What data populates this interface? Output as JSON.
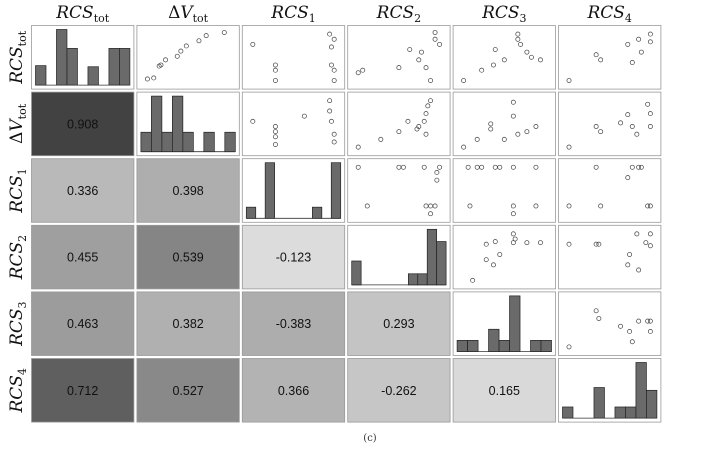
{
  "chart_data": {
    "type": "scatter-matrix",
    "variables": [
      {
        "id": "RCStot",
        "base": "RCS",
        "sub": "tot",
        "delta": false
      },
      {
        "id": "dVtot",
        "base": "V",
        "sub": "tot",
        "delta": true
      },
      {
        "id": "RCS1",
        "base": "RCS",
        "sub": "1",
        "delta": false
      },
      {
        "id": "RCS2",
        "base": "RCS",
        "sub": "2",
        "delta": false
      },
      {
        "id": "RCS3",
        "base": "RCS",
        "sub": "3",
        "delta": false
      },
      {
        "id": "RCS4",
        "base": "RCS",
        "sub": "4",
        "delta": false
      }
    ],
    "correlations": [
      {
        "row": 1,
        "col": 0,
        "value": "0.908",
        "shade": "#424242"
      },
      {
        "row": 2,
        "col": 0,
        "value": "0.336",
        "shade": "#b9b9b9"
      },
      {
        "row": 2,
        "col": 1,
        "value": "0.398",
        "shade": "#aeaeae"
      },
      {
        "row": 3,
        "col": 0,
        "value": "0.455",
        "shade": "#9f9f9f"
      },
      {
        "row": 3,
        "col": 1,
        "value": "0.539",
        "shade": "#858585"
      },
      {
        "row": 3,
        "col": 2,
        "value": "-0.123",
        "shade": "#dcdcdc"
      },
      {
        "row": 4,
        "col": 0,
        "value": "0.463",
        "shade": "#9c9c9c"
      },
      {
        "row": 4,
        "col": 1,
        "value": "0.382",
        "shade": "#b0b0b0"
      },
      {
        "row": 4,
        "col": 2,
        "value": "-0.383",
        "shade": "#adadad"
      },
      {
        "row": 4,
        "col": 3,
        "value": "0.293",
        "shade": "#c4c4c4"
      },
      {
        "row": 5,
        "col": 0,
        "value": "0.712",
        "shade": "#5f5f5f"
      },
      {
        "row": 5,
        "col": 1,
        "value": "0.527",
        "shade": "#898989"
      },
      {
        "row": 5,
        "col": 2,
        "value": "0.366",
        "shade": "#b3b3b3"
      },
      {
        "row": 5,
        "col": 3,
        "value": "-0.262",
        "shade": "#c6c6c6"
      },
      {
        "row": 5,
        "col": 4,
        "value": "0.165",
        "shade": "#d9d9d9"
      }
    ],
    "histograms": [
      [
        0.35,
        0,
        1.0,
        0.66,
        0,
        0.33,
        0,
        0.66,
        0.66
      ],
      [
        0.35,
        1.0,
        0.35,
        1.0,
        0.35,
        0,
        0.35,
        0,
        0.35
      ],
      [
        0.2,
        0,
        1.0,
        0,
        0,
        0,
        0,
        0.2,
        0,
        1.0
      ],
      [
        0.43,
        0,
        0,
        0,
        0,
        0,
        0.2,
        0.2,
        1.0,
        0.78
      ],
      [
        0.2,
        0.2,
        0,
        0.4,
        0.2,
        1.0,
        0,
        0.2,
        0.2
      ],
      [
        0.2,
        0,
        0,
        0.55,
        0,
        0.2,
        0.2,
        1.0,
        0.5
      ]
    ],
    "scatter": [
      {
        "row": 0,
        "col": 1,
        "points": [
          [
            0.05,
            0.08
          ],
          [
            0.12,
            0.1
          ],
          [
            0.18,
            0.33
          ],
          [
            0.2,
            0.35
          ],
          [
            0.25,
            0.45
          ],
          [
            0.38,
            0.52
          ],
          [
            0.42,
            0.62
          ],
          [
            0.48,
            0.72
          ],
          [
            0.62,
            0.82
          ],
          [
            0.7,
            0.92
          ],
          [
            0.9,
            0.98
          ]
        ]
      },
      {
        "row": 0,
        "col": 2,
        "points": [
          [
            0.05,
            0.75
          ],
          [
            0.3,
            0.35
          ],
          [
            0.3,
            0.25
          ],
          [
            0.3,
            0.05
          ],
          [
            0.9,
            0.95
          ],
          [
            0.95,
            0.85
          ],
          [
            0.92,
            0.7
          ],
          [
            0.92,
            0.35
          ],
          [
            0.95,
            0.25
          ],
          [
            0.95,
            0.05
          ]
        ]
      },
      {
        "row": 0,
        "col": 3,
        "points": [
          [
            0.05,
            0.2
          ],
          [
            0.1,
            0.25
          ],
          [
            0.5,
            0.3
          ],
          [
            0.62,
            0.65
          ],
          [
            0.72,
            0.45
          ],
          [
            0.75,
            0.6
          ],
          [
            0.8,
            0.3
          ],
          [
            0.85,
            0.05
          ],
          [
            0.9,
            0.98
          ],
          [
            0.9,
            0.85
          ],
          [
            0.95,
            0.75
          ]
        ]
      },
      {
        "row": 0,
        "col": 4,
        "points": [
          [
            0.25,
            0.25
          ],
          [
            0.38,
            0.35
          ],
          [
            0.4,
            0.65
          ],
          [
            0.5,
            0.45
          ],
          [
            0.65,
            0.85
          ],
          [
            0.65,
            0.95
          ],
          [
            0.68,
            0.75
          ],
          [
            0.75,
            0.6
          ],
          [
            0.8,
            0.5
          ],
          [
            0.9,
            0.45
          ],
          [
            0.05,
            0.05
          ]
        ]
      },
      {
        "row": 0,
        "col": 5,
        "points": [
          [
            0.05,
            0.05
          ],
          [
            0.35,
            0.55
          ],
          [
            0.4,
            0.45
          ],
          [
            0.75,
            0.4
          ],
          [
            0.7,
            0.75
          ],
          [
            0.82,
            0.85
          ],
          [
            0.85,
            0.6
          ],
          [
            0.95,
            0.95
          ],
          [
            0.95,
            0.8
          ]
        ]
      },
      {
        "row": 1,
        "col": 2,
        "points": [
          [
            0.05,
            0.55
          ],
          [
            0.3,
            0.45
          ],
          [
            0.3,
            0.35
          ],
          [
            0.3,
            0.25
          ],
          [
            0.3,
            0.1
          ],
          [
            0.62,
            0.65
          ],
          [
            0.9,
            0.95
          ],
          [
            0.9,
            0.75
          ],
          [
            0.92,
            0.55
          ],
          [
            0.95,
            0.3
          ],
          [
            0.95,
            0.15
          ]
        ]
      },
      {
        "row": 1,
        "col": 3,
        "points": [
          [
            0.05,
            0.05
          ],
          [
            0.3,
            0.2
          ],
          [
            0.5,
            0.35
          ],
          [
            0.6,
            0.55
          ],
          [
            0.7,
            0.4
          ],
          [
            0.72,
            0.45
          ],
          [
            0.78,
            0.55
          ],
          [
            0.8,
            0.7
          ],
          [
            0.8,
            0.3
          ],
          [
            0.82,
            0.85
          ],
          [
            0.85,
            0.95
          ]
        ]
      },
      {
        "row": 1,
        "col": 4,
        "points": [
          [
            0.05,
            0.05
          ],
          [
            0.2,
            0.2
          ],
          [
            0.35,
            0.4
          ],
          [
            0.35,
            0.5
          ],
          [
            0.5,
            0.2
          ],
          [
            0.6,
            0.65
          ],
          [
            0.6,
            0.92
          ],
          [
            0.65,
            0.3
          ],
          [
            0.75,
            0.35
          ],
          [
            0.85,
            0.45
          ]
        ]
      },
      {
        "row": 1,
        "col": 5,
        "points": [
          [
            0.05,
            0.05
          ],
          [
            0.35,
            0.45
          ],
          [
            0.4,
            0.35
          ],
          [
            0.62,
            0.52
          ],
          [
            0.7,
            0.68
          ],
          [
            0.75,
            0.45
          ],
          [
            0.8,
            0.3
          ],
          [
            0.92,
            0.88
          ],
          [
            0.95,
            0.7
          ],
          [
            0.95,
            0.45
          ]
        ]
      },
      {
        "row": 2,
        "col": 3,
        "points": [
          [
            0.05,
            0.95
          ],
          [
            0.15,
            0.2
          ],
          [
            0.5,
            0.95
          ],
          [
            0.55,
            0.95
          ],
          [
            0.78,
            0.95
          ],
          [
            0.8,
            0.2
          ],
          [
            0.85,
            0.05
          ],
          [
            0.85,
            0.2
          ],
          [
            0.9,
            0.2
          ],
          [
            0.92,
            0.7
          ],
          [
            0.92,
            0.85
          ],
          [
            0.95,
            0.95
          ]
        ]
      },
      {
        "row": 2,
        "col": 4,
        "points": [
          [
            0.1,
            0.95
          ],
          [
            0.12,
            0.2
          ],
          [
            0.2,
            0.95
          ],
          [
            0.25,
            0.95
          ],
          [
            0.4,
            0.95
          ],
          [
            0.45,
            0.95
          ],
          [
            0.6,
            0.95
          ],
          [
            0.6,
            0.2
          ],
          [
            0.6,
            0.05
          ],
          [
            0.85,
            0.95
          ],
          [
            0.85,
            0.2
          ]
        ]
      },
      {
        "row": 2,
        "col": 5,
        "points": [
          [
            0.05,
            0.2
          ],
          [
            0.35,
            0.95
          ],
          [
            0.4,
            0.2
          ],
          [
            0.7,
            0.75
          ],
          [
            0.75,
            0.95
          ],
          [
            0.82,
            0.95
          ],
          [
            0.85,
            0.95
          ],
          [
            0.92,
            0.2
          ],
          [
            0.95,
            0.2
          ]
        ]
      },
      {
        "row": 3,
        "col": 4,
        "points": [
          [
            0.15,
            0.05
          ],
          [
            0.3,
            0.45
          ],
          [
            0.3,
            0.75
          ],
          [
            0.38,
            0.35
          ],
          [
            0.4,
            0.8
          ],
          [
            0.45,
            0.55
          ],
          [
            0.6,
            0.95
          ],
          [
            0.6,
            0.78
          ],
          [
            0.62,
            0.85
          ],
          [
            0.75,
            0.78
          ],
          [
            0.9,
            0.78
          ]
        ]
      },
      {
        "row": 3,
        "col": 5,
        "points": [
          [
            0.05,
            0.75
          ],
          [
            0.35,
            0.75
          ],
          [
            0.38,
            0.75
          ],
          [
            0.7,
            0.35
          ],
          [
            0.72,
            0.55
          ],
          [
            0.8,
            0.95
          ],
          [
            0.82,
            0.25
          ],
          [
            0.9,
            0.78
          ],
          [
            0.95,
            0.95
          ],
          [
            0.95,
            0.72
          ]
        ]
      },
      {
        "row": 4,
        "col": 5,
        "points": [
          [
            0.05,
            0.05
          ],
          [
            0.35,
            0.75
          ],
          [
            0.38,
            0.6
          ],
          [
            0.62,
            0.45
          ],
          [
            0.72,
            0.35
          ],
          [
            0.75,
            0.15
          ],
          [
            0.82,
            0.55
          ],
          [
            0.92,
            0.55
          ],
          [
            0.95,
            0.35
          ],
          [
            0.95,
            0.55
          ]
        ]
      }
    ],
    "grid": false,
    "caption": "(c)"
  }
}
